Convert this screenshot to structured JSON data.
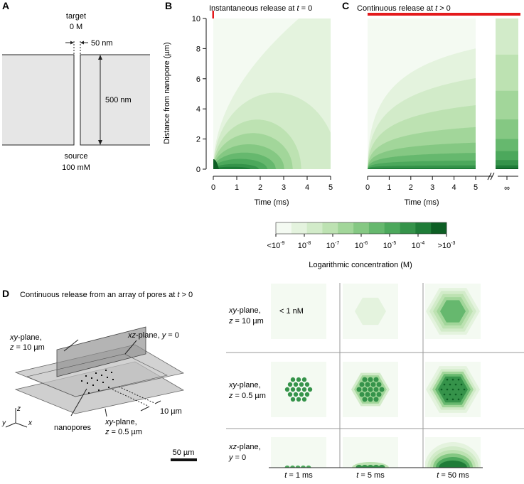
{
  "panel_labels": {
    "a": "A",
    "b": "B",
    "c": "C",
    "d": "D"
  },
  "panel_a": {
    "target_label": "target",
    "target_conc": "0 M",
    "pore_width": "50 nm",
    "membrane_thickness": "500 nm",
    "source_label": "source",
    "source_conc": "100 mM"
  },
  "colors": {
    "scale": [
      "#f4faf2",
      "#e4f3de",
      "#d2ebc9",
      "#bde2b2",
      "#a2d69a",
      "#85c883",
      "#66b86e",
      "#4ca85c",
      "#35934a",
      "#1f7c38",
      "#0d5e24"
    ],
    "red": "#e41a1c",
    "membrane": "#e6e6e6"
  },
  "chart_data": [
    {
      "type": "heatmap",
      "panel": "B",
      "title_prefix": "Instantaneous release at ",
      "title_t": "t",
      "title_suffix": " = 0",
      "xlabel": "Time (ms)",
      "ylabel": "Distance from nanopore (µm)",
      "x_ticks": [
        "0",
        "1",
        "2",
        "3",
        "4",
        "5"
      ],
      "y_ticks": [
        "0",
        "2",
        "4",
        "6",
        "8",
        "10"
      ],
      "xlim": [
        0,
        5
      ],
      "ylim": [
        0,
        10
      ],
      "boundary_scale": [
        5.5,
        4.4,
        3.4,
        2.6,
        1.9,
        1.35,
        0.9,
        0.5,
        0.25
      ]
    },
    {
      "type": "heatmap",
      "panel": "C",
      "title_prefix": "Continuous release at ",
      "title_t": "t",
      "title_suffix": " > 0",
      "xlabel": "Time (ms)",
      "x_ticks": [
        "0",
        "1",
        "2",
        "3",
        "4",
        "5"
      ],
      "infinity_label": "∞",
      "xlim": [
        0,
        5
      ],
      "ylim": [
        0,
        10
      ],
      "boundary_scale": [
        5.5,
        4.1,
        3.0,
        2.1,
        1.45,
        0.95,
        0.6,
        0.35,
        0.18
      ],
      "steady_state_bounds": [
        10,
        7.6,
        5.2,
        3.3,
        2.0,
        1.2,
        0.6,
        0.25,
        0.08
      ]
    }
  ],
  "colorbar": {
    "tick_labels": [
      {
        "pre": "<10",
        "exp": "-9"
      },
      {
        "pre": "10",
        "exp": "-8"
      },
      {
        "pre": "10",
        "exp": "-7"
      },
      {
        "pre": "10",
        "exp": "-6"
      },
      {
        "pre": "10",
        "exp": "-5"
      },
      {
        "pre": "10",
        "exp": "-4"
      },
      {
        "pre": ">10",
        "exp": "-3"
      }
    ],
    "label": "Logarithmic concentration (M)"
  },
  "panel_d": {
    "title_prefix": "Continuous release from an array of pores at ",
    "title_t": "t",
    "title_suffix": " > 0",
    "label_xy10_a": "xy",
    "label_xy10_b": "-plane,",
    "label_xy10_c": "z",
    "label_xy10_d": " = 10 µm",
    "label_xz_a": "xz",
    "label_xz_b": "-plane, ",
    "label_xz_c": "y",
    "label_xz_d": " = 0",
    "label_xy05_a": "xy",
    "label_xy05_b": "-plane,",
    "label_xy05_c": "z",
    "label_xy05_d": " = 0.5 µm",
    "nanopores_label": "nanopores",
    "spacing_label": "10 µm",
    "axis_z": "z",
    "axis_y": "y",
    "axis_x": "x",
    "scale_bar": "50 µm",
    "row_labels": [
      {
        "a": "xy",
        "b": "-plane,",
        "c": "z",
        "d": " = 10 µm"
      },
      {
        "a": "xy",
        "b": "-plane,",
        "c": "z",
        "d": " = 0.5 µm"
      },
      {
        "a": "xz",
        "b": "-plane,",
        "c": "y",
        "d": " = 0"
      }
    ],
    "below_threshold": "< 1 nM",
    "col_labels": [
      {
        "t": "t",
        "rest": " = 1 ms"
      },
      {
        "t": "t",
        "rest": " = 5 ms"
      },
      {
        "t": "t",
        "rest": " = 50 ms"
      }
    ]
  }
}
